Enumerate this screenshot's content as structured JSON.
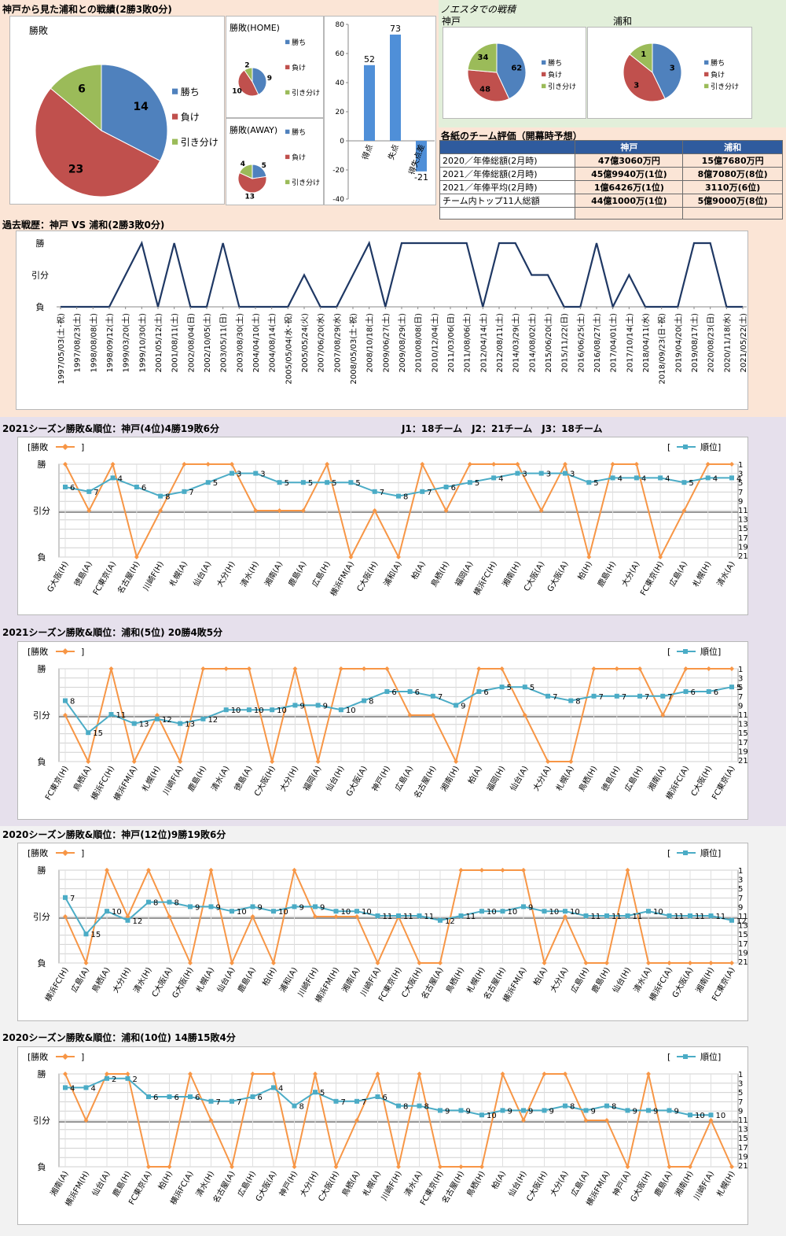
{
  "colors": {
    "win": "#4f81bd",
    "loss": "#c0504d",
    "draw": "#9bbb59",
    "orange": "#f79646",
    "teal": "#4bacc6",
    "navy": "#1f3864",
    "bar": "#4f8fd8",
    "header": "#2f5b9e"
  },
  "top": {
    "title": "神戸から見た浦和との戦績(2勝3敗0分)",
    "overall": {
      "title": "勝敗",
      "legend": [
        "勝ち",
        "負け",
        "引き分け"
      ],
      "chart_data": {
        "type": "pie",
        "labels": [
          "勝ち",
          "負け",
          "引き分け"
        ],
        "values": [
          14,
          23,
          6
        ]
      }
    },
    "home": {
      "title": "勝敗(HOME)",
      "legend": [
        "勝ち",
        "負け",
        "引き分け"
      ],
      "chart_data": {
        "type": "pie",
        "labels": [
          "勝ち",
          "負け",
          "引き分け"
        ],
        "values": [
          9,
          10,
          2
        ]
      }
    },
    "away": {
      "title": "勝敗(AWAY)",
      "legend": [
        "勝ち",
        "負け",
        "引き分け"
      ],
      "chart_data": {
        "type": "pie",
        "labels": [
          "勝ち",
          "負け",
          "引き分け"
        ],
        "values": [
          5,
          13,
          4
        ]
      }
    },
    "bar": {
      "chart_data": {
        "type": "bar",
        "categories": [
          "得点",
          "失点",
          "得失点差"
        ],
        "values": [
          52,
          73,
          -21
        ],
        "ylim": [
          -40,
          80
        ],
        "yticks": [
          "80",
          "60",
          "40",
          "20",
          "0",
          "-20",
          "-40"
        ]
      }
    }
  },
  "noesta": {
    "title": "ノエスタでの戦積",
    "kobe": {
      "label": "神戸",
      "legend": [
        "勝ち",
        "負け",
        "引き分け"
      ],
      "chart_data": {
        "type": "pie",
        "labels": [
          "勝ち",
          "負け",
          "引き分け"
        ],
        "values": [
          62,
          48,
          34
        ]
      }
    },
    "urawa": {
      "label": "浦和",
      "legend": [
        "勝ち",
        "負け",
        "引き分け"
      ],
      "chart_data": {
        "type": "pie",
        "labels": [
          "勝ち",
          "負け",
          "引き分け"
        ],
        "values": [
          3,
          3,
          1
        ]
      }
    }
  },
  "eval": {
    "title": "各紙のチーム評価（開幕時予想）",
    "headers": [
      "",
      "神戸",
      "浦和"
    ],
    "rows": [
      [
        "2020／年俸総額(2月時)",
        "47億3060万円",
        "15億7680万円"
      ],
      [
        "2021／年俸総額(2月時)",
        "45億9940万(1位)",
        "8億7080万(8位)"
      ],
      [
        "2021／年俸平均(2月時)",
        "1億6426万(1位)",
        "3110万(6位)"
      ],
      [
        "チーム内トップ11人総額",
        "44億1000万(1位)",
        "5億9000万(8位)"
      ],
      [
        "",
        "",
        ""
      ]
    ]
  },
  "history": {
    "title": "過去戦歴：神戸 VS 浦和(2勝3敗0分)",
    "ylabels": [
      "勝",
      "引分",
      "負"
    ],
    "chart_data": {
      "type": "line",
      "x": [
        "1997/05/03(土･祝)",
        "1997/08/23(土)",
        "1998/08/08(土)",
        "1998/09/12(土)",
        "1999/03/20(土)",
        "1999/10/30(土)",
        "2001/05/12(土)",
        "2001/08/11(土)",
        "2002/08/04(日)",
        "2002/10/05(土)",
        "2003/05/11(日)",
        "2003/08/30(土)",
        "2004/04/10(土)",
        "2004/08/14(土)",
        "2005/05/04(水･祝)",
        "2005/05/24(火)",
        "2007/06/20(水)",
        "2007/08/29(水)",
        "2008/05/03(土･祝)",
        "2008/10/18(土)",
        "2009/06/27(土)",
        "2009/08/29(土)",
        "2010/08/08(日)",
        "2010/12/04(土)",
        "2011/03/06(日)",
        "2011/08/06(土)",
        "2012/04/14(土)",
        "2012/08/11(土)",
        "2014/03/29(土)",
        "2014/08/02(土)",
        "2015/06/20(土)",
        "2015/11/22(日)",
        "2016/06/25(土)",
        "2016/08/27(土)",
        "2017/04/01(土)",
        "2017/10/14(土)",
        "2018/04/11(水)",
        "2018/09/23(日･祝)",
        "2019/04/20(土)",
        "2019/08/17(土)",
        "2020/08/23(日)",
        "2020/11/18(水)",
        "2021/05/22(土)"
      ],
      "y": [
        0,
        0,
        0,
        0,
        1,
        2,
        0,
        2,
        0,
        0,
        2,
        0,
        0,
        0,
        0,
        1,
        0,
        0,
        1,
        2,
        0,
        2,
        2,
        2,
        2,
        2,
        0,
        2,
        2,
        1,
        1,
        0,
        0,
        2,
        0,
        1,
        0,
        0,
        0,
        2,
        2,
        0,
        0
      ],
      "ylim": [
        0,
        2
      ]
    }
  },
  "sections": [
    {
      "title": "2021シーズン勝敗&順位：神戸(4位)4勝19敗6分",
      "note": "J1：18チーム　J2：21チーム　J3：18チーム",
      "legend_left": "[勝敗",
      "legend_left_end": "]",
      "legend_right": "[",
      "legend_right_end": "順位]",
      "ylabels": [
        "勝",
        "引分",
        "負"
      ],
      "rank_ticks": [
        "1",
        "3",
        "5",
        "7",
        "9",
        "11",
        "13",
        "15",
        "17",
        "19",
        "21"
      ],
      "chart_data": {
        "type": "line",
        "categories": [
          "G大阪(H)",
          "徳島(A)",
          "FC東京(A)",
          "名古屋(H)",
          "川崎F(H)",
          "札幌(A)",
          "仙台(A)",
          "大分(H)",
          "清水(H)",
          "湘南(A)",
          "鹿島(A)",
          "広島(H)",
          "横浜FM(A)",
          "C大阪(H)",
          "浦和(A)",
          "柏(A)",
          "鳥栖(H)",
          "福岡(A)",
          "横浜FC(H)",
          "湘南(H)",
          "C大阪(A)",
          "G大阪(A)",
          "柏(H)",
          "鹿島(H)",
          "大分(A)",
          "FC東京(H)",
          "広島(A)",
          "札幌(H)",
          "清水(A)"
        ],
        "series": [
          {
            "name": "勝敗",
            "values": [
              2,
              1,
              2,
              0,
              1,
              2,
              2,
              2,
              1,
              1,
              1,
              2,
              0,
              1,
              0,
              2,
              1,
              2,
              2,
              2,
              1,
              2,
              0,
              2,
              2,
              0,
              1,
              2,
              2
            ]
          },
          {
            "name": "順位",
            "values": [
              6,
              7,
              4,
              6,
              8,
              7,
              5,
              3,
              3,
              5,
              5,
              5,
              5,
              7,
              8,
              7,
              6,
              5,
              4,
              3,
              3,
              3,
              5,
              4,
              4,
              4,
              5,
              4,
              4
            ]
          }
        ]
      }
    },
    {
      "title": "2021シーズン勝敗&順位：浦和(5位) 20勝4敗5分",
      "note": "",
      "legend_left": "[勝敗",
      "legend_left_end": "]",
      "legend_right": "[",
      "legend_right_end": "順位]",
      "ylabels": [
        "勝",
        "引分",
        "負"
      ],
      "rank_ticks": [
        "1",
        "3",
        "5",
        "7",
        "9",
        "11",
        "13",
        "15",
        "17",
        "19",
        "21"
      ],
      "chart_data": {
        "type": "line",
        "categories": [
          "FC東京(H)",
          "鳥栖(A)",
          "横浜FC(H)",
          "横浜FM(A)",
          "札幌(H)",
          "川崎F(A)",
          "鹿島(H)",
          "清水(A)",
          "徳島(A)",
          "C大阪(H)",
          "大分(H)",
          "福岡(A)",
          "仙台(H)",
          "G大阪(A)",
          "神戸(H)",
          "広島(A)",
          "名古屋(H)",
          "湘南(H)",
          "柏(A)",
          "福岡(H)",
          "仙台(A)",
          "大分(A)",
          "札幌(A)",
          "鳥栖(H)",
          "徳島(H)",
          "広島(H)",
          "湘南(A)",
          "横浜FC(A)",
          "C大阪(H)",
          "FC東京(A)"
        ],
        "series": [
          {
            "name": "勝敗",
            "values": [
              1,
              0,
              2,
              0,
              1,
              0,
              2,
              2,
              2,
              0,
              2,
              0,
              2,
              2,
              2,
              1,
              1,
              0,
              2,
              2,
              1,
              0,
              0,
              2,
              2,
              2,
              1,
              2,
              2,
              2
            ]
          },
          {
            "name": "順位",
            "values": [
              8,
              15,
              11,
              13,
              12,
              13,
              12,
              10,
              10,
              10,
              9,
              9,
              10,
              8,
              6,
              6,
              7,
              9,
              6,
              5,
              5,
              7,
              8,
              7,
              7,
              7,
              7,
              6,
              6,
              5
            ]
          }
        ]
      }
    },
    {
      "title": "2020シーズン勝敗&順位：神戸(12位)9勝19敗6分",
      "note": "",
      "legend_left": "[勝敗",
      "legend_left_end": "]",
      "legend_right": "[",
      "legend_right_end": "順位]",
      "ylabels": [
        "勝",
        "引分",
        "負"
      ],
      "rank_ticks": [
        "1",
        "3",
        "5",
        "7",
        "9",
        "11",
        "13",
        "15",
        "17",
        "19",
        "21"
      ],
      "chart_data": {
        "type": "line",
        "categories": [
          "横浜FC(H)",
          "広島(A)",
          "鳥栖(A)",
          "大分(H)",
          "清水(H)",
          "C大阪(A)",
          "G大阪(H)",
          "札幌(A)",
          "仙台(A)",
          "鹿島(A)",
          "柏(H)",
          "浦和(A)",
          "川崎F(H)",
          "横浜FM(H)",
          "湘南(A)",
          "川崎F(A)",
          "FC東京(H)",
          "C大阪(H)",
          "名古屋(A)",
          "鳥栖(H)",
          "札幌(H)",
          "名古屋(H)",
          "横浜FM(A)",
          "柏(A)",
          "大分(A)",
          "広島(H)",
          "鹿島(H)",
          "仙台(H)",
          "清水(A)",
          "横浜FC(A)",
          "G大阪(A)",
          "湘南(H)",
          "FC東京(A)"
        ],
        "series": [
          {
            "name": "勝敗",
            "values": [
              1,
              0,
              2,
              1,
              2,
              1,
              0,
              2,
              0,
              1,
              0,
              2,
              1,
              1,
              1,
              0,
              1,
              0,
              0,
              2,
              2,
              2,
              2,
              0,
              1,
              0,
              0,
              2,
              0,
              0,
              0,
              0,
              0
            ]
          },
          {
            "name": "順位",
            "values": [
              7,
              15,
              10,
              12,
              8,
              8,
              9,
              9,
              10,
              9,
              10,
              9,
              9,
              10,
              10,
              11,
              11,
              11,
              12,
              11,
              10,
              10,
              9,
              10,
              10,
              11,
              11,
              11,
              10,
              11,
              11,
              11,
              12
            ]
          }
        ]
      }
    },
    {
      "title": "2020シーズン勝敗&順位：浦和(10位) 14勝15敗4分",
      "note": "",
      "legend_left": "[勝敗",
      "legend_left_end": "]",
      "legend_right": "[",
      "legend_right_end": "順位]",
      "ylabels": [
        "勝",
        "引分",
        "負"
      ],
      "rank_ticks": [
        "1",
        "3",
        "5",
        "7",
        "9",
        "11",
        "13",
        "15",
        "17",
        "19",
        "21"
      ],
      "chart_data": {
        "type": "line",
        "categories": [
          "湘南(A)",
          "横浜FM(H)",
          "仙台(A)",
          "鹿島(H)",
          "FC東京(A)",
          "柏(H)",
          "横浜FC(A)",
          "清水(H)",
          "名古屋(A)",
          "広島(H)",
          "G大阪(A)",
          "神戸(H)",
          "大分(H)",
          "C大阪(H)",
          "鳥栖(A)",
          "札幌(A)",
          "川崎F(H)",
          "清水(A)",
          "FC東京(H)",
          "名古屋(H)",
          "鳥栖(H)",
          "柏(A)",
          "仙台(H)",
          "C大阪(H)",
          "大分(A)",
          "広島(A)",
          "横浜FM(A)",
          "神戸(A)",
          "G大阪(H)",
          "鹿島(A)",
          "湘南(H)",
          "川崎F(A)",
          "札幌(H)"
        ],
        "series": [
          {
            "name": "勝敗",
            "values": [
              2,
              1,
              2,
              2,
              0,
              0,
              2,
              1,
              0,
              2,
              2,
              0,
              2,
              0,
              1,
              2,
              0,
              2,
              0,
              0,
              0,
              2,
              1,
              2,
              2,
              1,
              1,
              0,
              2,
              0,
              0,
              1,
              0
            ]
          },
          {
            "name": "順位",
            "values": [
              4,
              4,
              2,
              2,
              6,
              6,
              6,
              7,
              7,
              6,
              4,
              8,
              5,
              7,
              7,
              6,
              8,
              8,
              9,
              9,
              10,
              9,
              9,
              9,
              8,
              9,
              8,
              9,
              9,
              9,
              10,
              10,
              null
            ]
          }
        ]
      }
    }
  ]
}
